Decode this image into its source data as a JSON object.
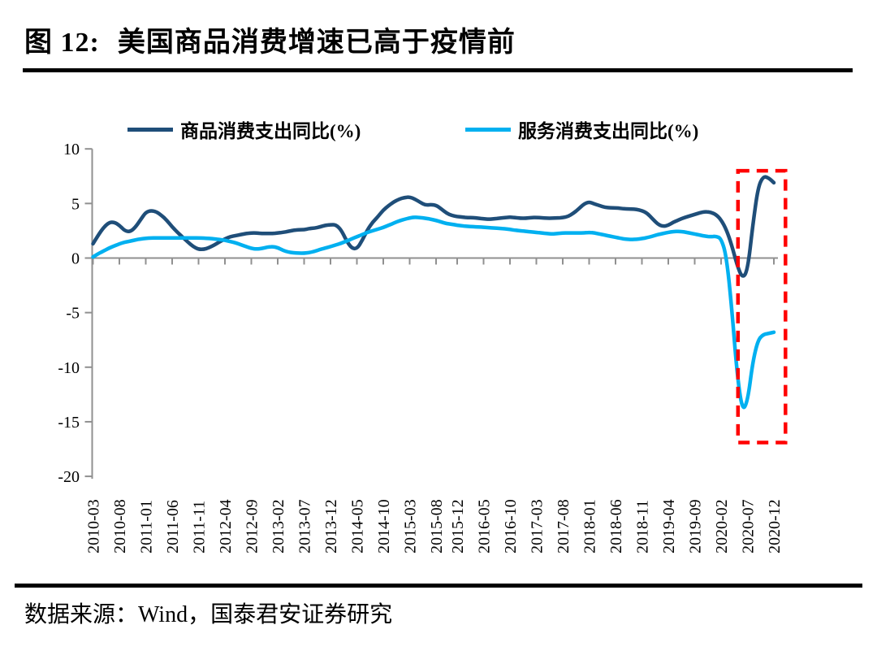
{
  "figure": {
    "title_prefix": "图 12:",
    "title": "美国商品消费增速已高于疫情前",
    "source": "数据来源：Wind，国泰君安证券研究"
  },
  "colors": {
    "goods_line": "#1F4E79",
    "services_line": "#00B0F0",
    "axis": "#909090",
    "highlight_box": "#FF0000",
    "text": "#000000",
    "rule": "#000000"
  },
  "chart_data": {
    "type": "line",
    "title": "美国商品消费增速已高于疫情前",
    "xlabel": "",
    "ylabel": "",
    "x_unit": "month",
    "x_start": "2010-03",
    "x_end": "2020-12",
    "ylim": [
      -20,
      10
    ],
    "y_ticks": [
      10,
      5,
      0,
      -5,
      -10,
      -15,
      -20
    ],
    "grid": false,
    "legend_position": "top",
    "x_ticks": [
      {
        "label": "2010-03",
        "m": 0
      },
      {
        "label": "2010-08",
        "m": 5
      },
      {
        "label": "2011-01",
        "m": 10
      },
      {
        "label": "2011-06",
        "m": 15
      },
      {
        "label": "2011-11",
        "m": 20
      },
      {
        "label": "2012-04",
        "m": 25
      },
      {
        "label": "2012-09",
        "m": 30
      },
      {
        "label": "2013-02",
        "m": 35
      },
      {
        "label": "2013-07",
        "m": 40
      },
      {
        "label": "2013-12",
        "m": 45
      },
      {
        "label": "2014-05",
        "m": 50
      },
      {
        "label": "2014-10",
        "m": 55
      },
      {
        "label": "2015-03",
        "m": 60
      },
      {
        "label": "2015-08",
        "m": 65
      },
      {
        "label": "2015-12",
        "m": 69
      },
      {
        "label": "2016-05",
        "m": 74
      },
      {
        "label": "2016-10",
        "m": 79
      },
      {
        "label": "2017-03",
        "m": 84
      },
      {
        "label": "2017-08",
        "m": 89
      },
      {
        "label": "2018-01",
        "m": 94
      },
      {
        "label": "2018-06",
        "m": 99
      },
      {
        "label": "2018-11",
        "m": 104
      },
      {
        "label": "2019-04",
        "m": 109
      },
      {
        "label": "2019-09",
        "m": 114
      },
      {
        "label": "2020-02",
        "m": 119
      },
      {
        "label": "2020-07",
        "m": 124
      },
      {
        "label": "2020-12",
        "m": 129
      }
    ],
    "series": [
      {
        "name": "商品消费支出同比(%)",
        "color": "#1F4E79",
        "values": [
          1.3,
          2.1,
          2.8,
          3.25,
          3.3,
          3.0,
          2.5,
          2.4,
          2.8,
          3.5,
          4.2,
          4.35,
          4.25,
          3.9,
          3.45,
          2.85,
          2.35,
          1.9,
          1.45,
          1.05,
          0.8,
          0.8,
          0.95,
          1.2,
          1.5,
          1.75,
          1.95,
          2.05,
          2.15,
          2.25,
          2.3,
          2.3,
          2.25,
          2.25,
          2.25,
          2.3,
          2.35,
          2.45,
          2.55,
          2.6,
          2.6,
          2.7,
          2.75,
          2.85,
          3.0,
          3.05,
          3.05,
          2.6,
          1.6,
          0.9,
          0.85,
          1.6,
          2.6,
          3.3,
          3.8,
          4.4,
          4.8,
          5.15,
          5.4,
          5.55,
          5.6,
          5.4,
          5.1,
          4.85,
          4.9,
          4.85,
          4.5,
          4.1,
          3.9,
          3.8,
          3.75,
          3.7,
          3.7,
          3.65,
          3.6,
          3.55,
          3.6,
          3.65,
          3.7,
          3.75,
          3.7,
          3.65,
          3.65,
          3.7,
          3.72,
          3.68,
          3.65,
          3.65,
          3.68,
          3.7,
          3.8,
          4.1,
          4.5,
          4.95,
          5.15,
          4.95,
          4.8,
          4.65,
          4.6,
          4.6,
          4.55,
          4.5,
          4.5,
          4.45,
          4.35,
          4.1,
          3.6,
          3.1,
          2.9,
          3.0,
          3.3,
          3.5,
          3.7,
          3.85,
          4.0,
          4.15,
          4.25,
          4.2,
          4.0,
          3.5,
          2.6,
          1.2,
          -0.6,
          -1.85,
          -1.2,
          3.0,
          6.5,
          7.5,
          7.35,
          6.9
        ]
      },
      {
        "name": "服务消费支出同比(%)",
        "color": "#00B0F0",
        "values": [
          0.1,
          0.4,
          0.65,
          0.9,
          1.1,
          1.3,
          1.45,
          1.55,
          1.65,
          1.75,
          1.8,
          1.85,
          1.85,
          1.85,
          1.85,
          1.85,
          1.85,
          1.85,
          1.85,
          1.85,
          1.85,
          1.82,
          1.8,
          1.75,
          1.7,
          1.62,
          1.52,
          1.4,
          1.22,
          1.05,
          0.88,
          0.82,
          0.88,
          1.0,
          1.05,
          0.95,
          0.7,
          0.55,
          0.48,
          0.45,
          0.45,
          0.5,
          0.62,
          0.78,
          0.92,
          1.05,
          1.2,
          1.35,
          1.55,
          1.75,
          1.95,
          2.15,
          2.35,
          2.5,
          2.65,
          2.8,
          3.0,
          3.2,
          3.4,
          3.55,
          3.68,
          3.75,
          3.7,
          3.65,
          3.55,
          3.45,
          3.3,
          3.15,
          3.1,
          3.0,
          2.95,
          2.9,
          2.87,
          2.85,
          2.82,
          2.78,
          2.75,
          2.72,
          2.68,
          2.62,
          2.55,
          2.5,
          2.45,
          2.4,
          2.35,
          2.3,
          2.25,
          2.2,
          2.25,
          2.3,
          2.3,
          2.3,
          2.3,
          2.3,
          2.35,
          2.3,
          2.2,
          2.1,
          2.0,
          1.9,
          1.8,
          1.72,
          1.7,
          1.72,
          1.78,
          1.88,
          2.0,
          2.15,
          2.25,
          2.35,
          2.42,
          2.45,
          2.4,
          2.3,
          2.2,
          2.1,
          2.0,
          1.95,
          2.0,
          1.8,
          0.2,
          -4.5,
          -10.5,
          -14.0,
          -13.2,
          -9.5,
          -7.5,
          -7.0,
          -6.9,
          -6.8
        ]
      }
    ],
    "annotation_box": {
      "shape": "dashed-rect",
      "color": "#FF0000",
      "x_month_range": [
        122.2,
        131.2
      ],
      "y_range": [
        -16.9,
        8.0
      ]
    }
  }
}
